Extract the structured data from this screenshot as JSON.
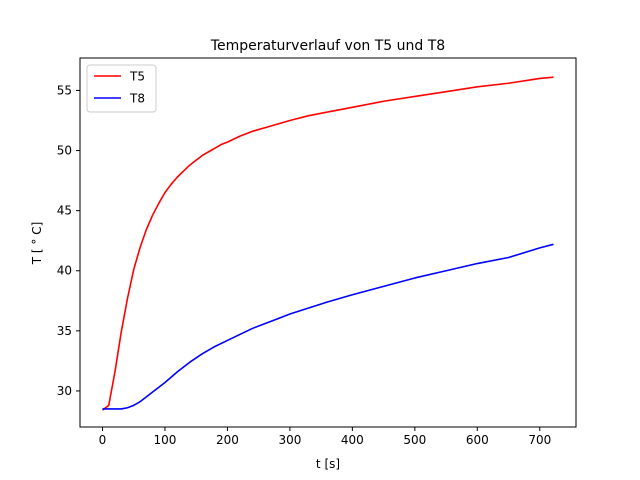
{
  "chart_data": {
    "type": "line",
    "title": "Temperaturverlauf von T5 und T8",
    "xlabel": "t [s]",
    "ylabel": "T [ ° C]",
    "xlim": [
      -36,
      758
    ],
    "ylim": [
      27.0,
      57.7
    ],
    "xticks": [
      0,
      100,
      200,
      300,
      400,
      500,
      600,
      700
    ],
    "yticks": [
      30,
      35,
      40,
      45,
      50,
      55
    ],
    "grid": false,
    "legend": {
      "position": "upper-left"
    },
    "series": [
      {
        "name": "T5",
        "color": "#ff0000",
        "x": [
          0,
          10,
          20,
          30,
          40,
          50,
          60,
          70,
          80,
          90,
          100,
          110,
          120,
          130,
          140,
          150,
          160,
          170,
          180,
          190,
          200,
          220,
          240,
          260,
          280,
          300,
          330,
          360,
          400,
          450,
          500,
          550,
          600,
          650,
          700,
          722
        ],
        "y": [
          28.4,
          28.8,
          31.6,
          34.9,
          37.7,
          40.1,
          41.9,
          43.4,
          44.6,
          45.6,
          46.5,
          47.2,
          47.8,
          48.3,
          48.8,
          49.2,
          49.6,
          49.9,
          50.2,
          50.5,
          50.7,
          51.2,
          51.6,
          51.9,
          52.2,
          52.5,
          52.9,
          53.2,
          53.6,
          54.1,
          54.5,
          54.9,
          55.3,
          55.6,
          56.0,
          56.1
        ]
      },
      {
        "name": "T8",
        "color": "#0000ff",
        "x": [
          0,
          10,
          20,
          30,
          40,
          50,
          60,
          70,
          80,
          90,
          100,
          120,
          140,
          160,
          180,
          200,
          220,
          240,
          260,
          280,
          300,
          330,
          360,
          400,
          450,
          500,
          550,
          600,
          650,
          700,
          722
        ],
        "y": [
          28.5,
          28.5,
          28.5,
          28.5,
          28.6,
          28.8,
          29.1,
          29.5,
          29.9,
          30.3,
          30.7,
          31.6,
          32.4,
          33.1,
          33.7,
          34.2,
          34.7,
          35.2,
          35.6,
          36.0,
          36.4,
          36.9,
          37.4,
          38.0,
          38.7,
          39.4,
          40.0,
          40.6,
          41.1,
          41.9,
          42.2
        ]
      }
    ]
  }
}
